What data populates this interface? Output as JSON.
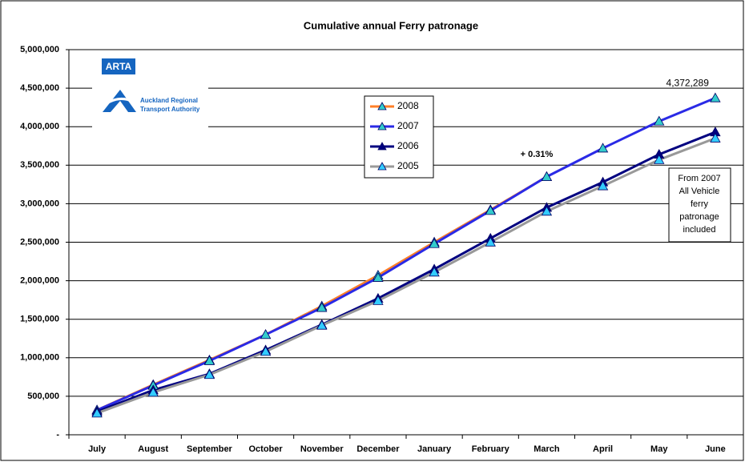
{
  "chart_data": {
    "type": "line",
    "title": "Cumulative annual Ferry patronage",
    "categories": [
      "July",
      "August",
      "September",
      "October",
      "November",
      "December",
      "January",
      "February",
      "March",
      "April",
      "May",
      "June"
    ],
    "series": [
      {
        "name": "2008",
        "color": "#ff7f27",
        "marker_fill": "#33cccc",
        "values": [
          320000,
          650000,
          970000,
          1300000,
          1670000,
          2070000,
          2500000,
          2920000,
          3350000,
          null,
          null,
          null
        ]
      },
      {
        "name": "2007",
        "color": "#2a2ae6",
        "marker_fill": "#33cccc",
        "values": [
          320000,
          640000,
          960000,
          1300000,
          1650000,
          2040000,
          2480000,
          2910000,
          3350000,
          3720000,
          4070000,
          4372289
        ],
        "value_labels": [
          null,
          null,
          null,
          null,
          null,
          null,
          null,
          null,
          null,
          null,
          null,
          "4,372,289"
        ]
      },
      {
        "name": "2006",
        "color": "#000080",
        "marker_fill": "#000080",
        "values": [
          300000,
          580000,
          790000,
          1100000,
          1430000,
          1770000,
          2150000,
          2550000,
          2950000,
          3280000,
          3640000,
          3930000
        ]
      },
      {
        "name": "2005",
        "color": "#999999",
        "marker_fill": "#33ccff",
        "values": [
          280000,
          550000,
          780000,
          1080000,
          1420000,
          1740000,
          2110000,
          2500000,
          2900000,
          3230000,
          3570000,
          3850000
        ]
      }
    ],
    "ylim": [
      0,
      5000000
    ],
    "yticks": [
      {
        "value": 0,
        "label": "-"
      },
      {
        "value": 500000,
        "label": "500,000"
      },
      {
        "value": 1000000,
        "label": "1,000,000"
      },
      {
        "value": 1500000,
        "label": "1,500,000"
      },
      {
        "value": 2000000,
        "label": "2,000,000"
      },
      {
        "value": 2500000,
        "label": "2,500,000"
      },
      {
        "value": 3000000,
        "label": "3,000,000"
      },
      {
        "value": 3500000,
        "label": "3,500,000"
      },
      {
        "value": 4000000,
        "label": "4,000,000"
      },
      {
        "value": 4500000,
        "label": "4,500,000"
      },
      {
        "value": 5000000,
        "label": "5,000,000"
      }
    ],
    "grid": true,
    "annotation": "+ 0.31%",
    "note_box": [
      "From 2007",
      "All Vehicle",
      "ferry",
      "patronage",
      "included"
    ],
    "logo": {
      "acronym": "ARTA",
      "line1": "Auckland Regional",
      "line2": "Transport Authority"
    }
  }
}
